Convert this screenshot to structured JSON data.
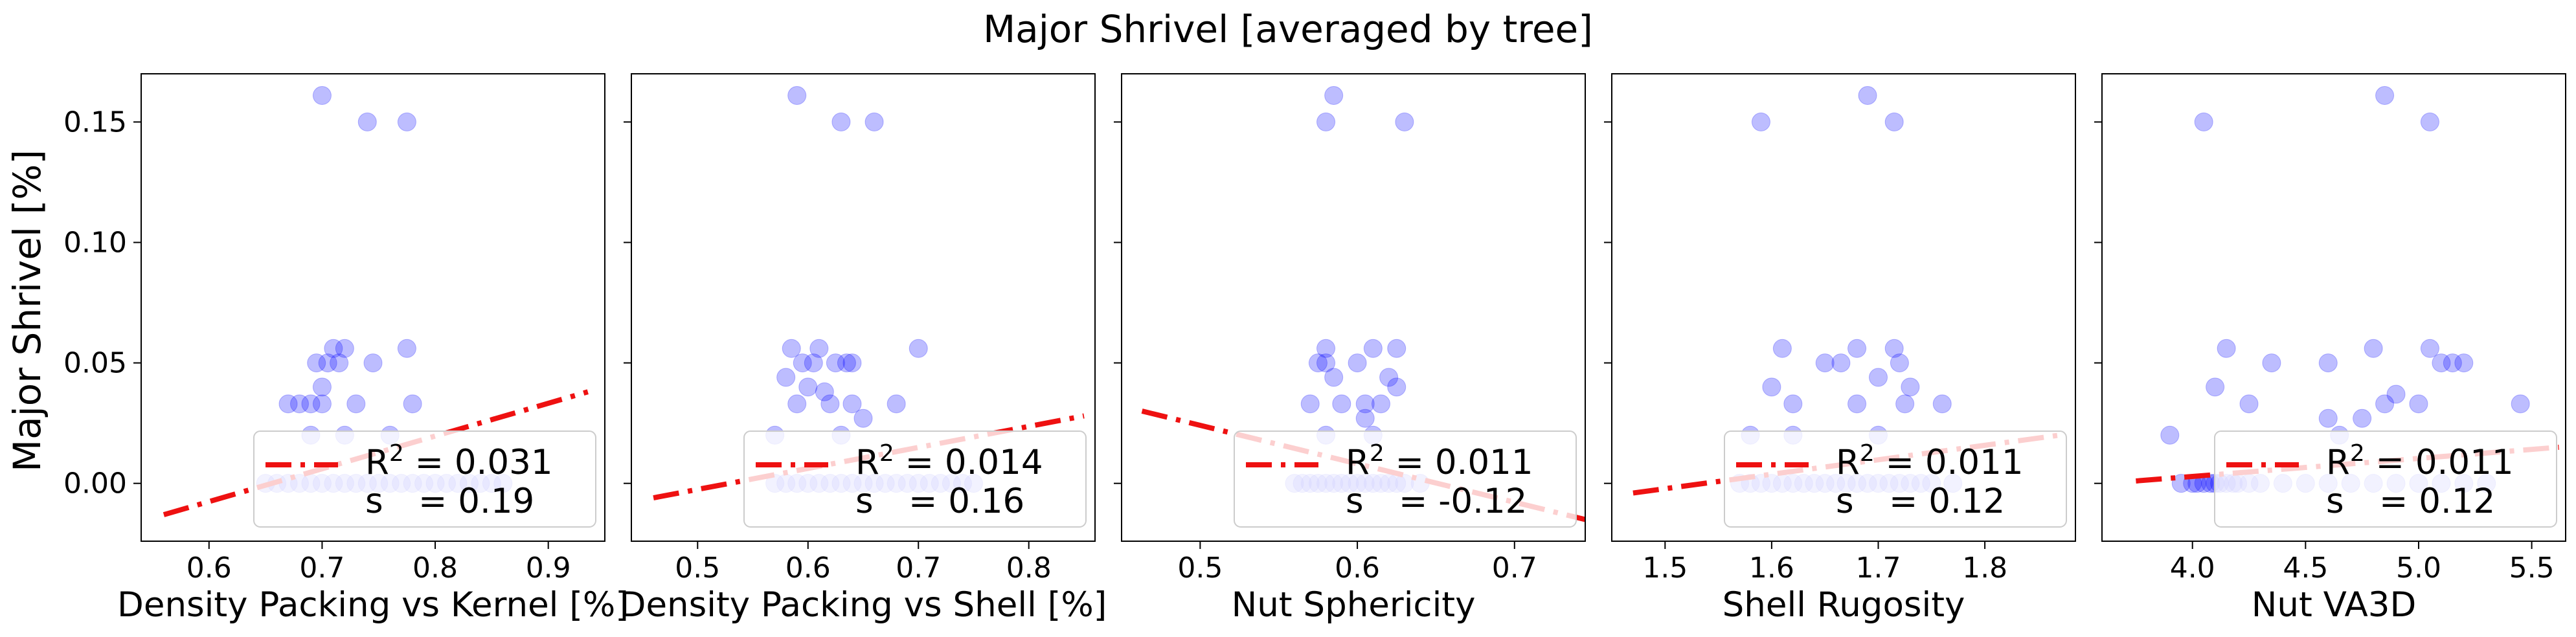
{
  "figure": {
    "title": "Major Shrivel [averaged by tree]",
    "ylabel": "Major Shrivel [%]"
  },
  "colors": {
    "points": "#0000ff",
    "fit_line": "#ee1111",
    "legend_line": "#ff9999"
  },
  "chart_data": [
    {
      "type": "scatter",
      "xlabel": "Density Packing vs Kernel [%]",
      "ylabel": "Major Shrivel [%]",
      "xlim": [
        0.54,
        0.95
      ],
      "ylim": [
        -0.024,
        0.17
      ],
      "xticks": [
        0.6,
        0.7,
        0.8,
        0.9
      ],
      "xtick_labels": [
        "0.6",
        "0.7",
        "0.8",
        "0.9"
      ],
      "yticks": [
        0.0,
        0.05,
        0.1,
        0.15
      ],
      "ytick_labels": [
        "0.00",
        "0.05",
        "0.10",
        "0.15"
      ],
      "points": [
        [
          0.7,
          0.161
        ],
        [
          0.74,
          0.15
        ],
        [
          0.775,
          0.15
        ],
        [
          0.71,
          0.056
        ],
        [
          0.72,
          0.056
        ],
        [
          0.775,
          0.056
        ],
        [
          0.695,
          0.05
        ],
        [
          0.705,
          0.05
        ],
        [
          0.715,
          0.05
        ],
        [
          0.745,
          0.05
        ],
        [
          0.7,
          0.04
        ],
        [
          0.69,
          0.033
        ],
        [
          0.7,
          0.033
        ],
        [
          0.67,
          0.033
        ],
        [
          0.68,
          0.033
        ],
        [
          0.73,
          0.033
        ],
        [
          0.78,
          0.033
        ],
        [
          0.72,
          0.02
        ],
        [
          0.76,
          0.02
        ],
        [
          0.69,
          0.02
        ],
        [
          0.66,
          0.0
        ],
        [
          0.68,
          0.0
        ],
        [
          0.7,
          0.0
        ],
        [
          0.72,
          0.0
        ],
        [
          0.74,
          0.0
        ],
        [
          0.76,
          0.0
        ],
        [
          0.78,
          0.0
        ],
        [
          0.8,
          0.0
        ],
        [
          0.82,
          0.0
        ],
        [
          0.84,
          0.0
        ],
        [
          0.86,
          0.0
        ],
        [
          0.65,
          0.0
        ],
        [
          0.67,
          0.0
        ],
        [
          0.69,
          0.0
        ],
        [
          0.71,
          0.0
        ],
        [
          0.73,
          0.0
        ],
        [
          0.75,
          0.0
        ],
        [
          0.77,
          0.0
        ],
        [
          0.79,
          0.0
        ],
        [
          0.81,
          0.0
        ],
        [
          0.83,
          0.0
        ],
        [
          0.85,
          0.0
        ]
      ],
      "fit": [
        [
          0.56,
          -0.013
        ],
        [
          0.935,
          0.038
        ]
      ],
      "r2_label": "R",
      "r2_sup": "2",
      "r2_value": "= 0.031",
      "s_label": "s",
      "s_value": "= 0.19",
      "legend": "lower right"
    },
    {
      "type": "scatter",
      "xlabel": "Density Packing vs Shell [%]",
      "ylabel": "",
      "xlim": [
        0.44,
        0.86
      ],
      "ylim": [
        -0.024,
        0.17
      ],
      "xticks": [
        0.5,
        0.6,
        0.7,
        0.8
      ],
      "xtick_labels": [
        "0.5",
        "0.6",
        "0.7",
        "0.8"
      ],
      "yticks": [
        0.0,
        0.05,
        0.1,
        0.15
      ],
      "ytick_labels": [
        "",
        "",
        "",
        ""
      ],
      "points": [
        [
          0.59,
          0.161
        ],
        [
          0.63,
          0.15
        ],
        [
          0.66,
          0.15
        ],
        [
          0.585,
          0.056
        ],
        [
          0.61,
          0.056
        ],
        [
          0.64,
          0.05
        ],
        [
          0.7,
          0.056
        ],
        [
          0.595,
          0.05
        ],
        [
          0.605,
          0.05
        ],
        [
          0.625,
          0.05
        ],
        [
          0.635,
          0.05
        ],
        [
          0.58,
          0.044
        ],
        [
          0.6,
          0.04
        ],
        [
          0.615,
          0.038
        ],
        [
          0.59,
          0.033
        ],
        [
          0.62,
          0.033
        ],
        [
          0.64,
          0.033
        ],
        [
          0.68,
          0.033
        ],
        [
          0.57,
          0.02
        ],
        [
          0.63,
          0.02
        ],
        [
          0.65,
          0.027
        ],
        [
          0.57,
          0.0
        ],
        [
          0.59,
          0.0
        ],
        [
          0.61,
          0.0
        ],
        [
          0.63,
          0.0
        ],
        [
          0.65,
          0.0
        ],
        [
          0.67,
          0.0
        ],
        [
          0.69,
          0.0
        ],
        [
          0.71,
          0.0
        ],
        [
          0.73,
          0.0
        ],
        [
          0.75,
          0.0
        ],
        [
          0.58,
          0.0
        ],
        [
          0.6,
          0.0
        ],
        [
          0.62,
          0.0
        ],
        [
          0.64,
          0.0
        ],
        [
          0.66,
          0.0
        ],
        [
          0.68,
          0.0
        ],
        [
          0.7,
          0.0
        ],
        [
          0.72,
          0.0
        ],
        [
          0.74,
          0.0
        ]
      ],
      "fit": [
        [
          0.46,
          -0.006
        ],
        [
          0.85,
          0.028
        ]
      ],
      "r2_label": "R",
      "r2_sup": "2",
      "r2_value": "= 0.014",
      "s_label": "s",
      "s_value": "= 0.16",
      "legend": "lower right"
    },
    {
      "type": "scatter",
      "xlabel": "Nut Sphericity",
      "ylabel": "",
      "xlim": [
        0.45,
        0.745
      ],
      "ylim": [
        -0.024,
        0.17
      ],
      "xticks": [
        0.5,
        0.6,
        0.7
      ],
      "xtick_labels": [
        "0.5",
        "0.6",
        "0.7"
      ],
      "yticks": [
        0.0,
        0.05,
        0.1,
        0.15
      ],
      "ytick_labels": [
        "",
        "",
        "",
        ""
      ],
      "points": [
        [
          0.585,
          0.161
        ],
        [
          0.58,
          0.15
        ],
        [
          0.63,
          0.15
        ],
        [
          0.58,
          0.056
        ],
        [
          0.61,
          0.056
        ],
        [
          0.625,
          0.056
        ],
        [
          0.575,
          0.05
        ],
        [
          0.58,
          0.05
        ],
        [
          0.6,
          0.05
        ],
        [
          0.585,
          0.044
        ],
        [
          0.62,
          0.044
        ],
        [
          0.57,
          0.033
        ],
        [
          0.59,
          0.033
        ],
        [
          0.605,
          0.033
        ],
        [
          0.615,
          0.033
        ],
        [
          0.625,
          0.04
        ],
        [
          0.58,
          0.02
        ],
        [
          0.61,
          0.02
        ],
        [
          0.605,
          0.027
        ],
        [
          0.56,
          0.0
        ],
        [
          0.57,
          0.0
        ],
        [
          0.58,
          0.0
        ],
        [
          0.59,
          0.0
        ],
        [
          0.6,
          0.0
        ],
        [
          0.61,
          0.0
        ],
        [
          0.62,
          0.0
        ],
        [
          0.63,
          0.0
        ],
        [
          0.64,
          0.0
        ],
        [
          0.565,
          0.0
        ],
        [
          0.575,
          0.0
        ],
        [
          0.585,
          0.0
        ],
        [
          0.595,
          0.0
        ],
        [
          0.605,
          0.0
        ],
        [
          0.615,
          0.0
        ],
        [
          0.625,
          0.0
        ]
      ],
      "fit": [
        [
          0.463,
          0.03
        ],
        [
          0.745,
          -0.015
        ]
      ],
      "r2_label": "R",
      "r2_sup": "2",
      "r2_value": "= 0.011",
      "s_label": "s",
      "s_value": "= -0.12",
      "legend": "lower right"
    },
    {
      "type": "scatter",
      "xlabel": "Shell Rugosity",
      "ylabel": "",
      "xlim": [
        1.45,
        1.885
      ],
      "ylim": [
        -0.024,
        0.17
      ],
      "xticks": [
        1.5,
        1.6,
        1.7,
        1.8
      ],
      "xtick_labels": [
        "1.5",
        "1.6",
        "1.7",
        "1.8"
      ],
      "yticks": [
        0.0,
        0.05,
        0.1,
        0.15
      ],
      "ytick_labels": [
        "",
        "",
        "",
        ""
      ],
      "points": [
        [
          1.69,
          0.161
        ],
        [
          1.59,
          0.15
        ],
        [
          1.715,
          0.15
        ],
        [
          1.61,
          0.056
        ],
        [
          1.68,
          0.056
        ],
        [
          1.715,
          0.056
        ],
        [
          1.65,
          0.05
        ],
        [
          1.665,
          0.05
        ],
        [
          1.72,
          0.05
        ],
        [
          1.6,
          0.04
        ],
        [
          1.62,
          0.033
        ],
        [
          1.7,
          0.044
        ],
        [
          1.73,
          0.04
        ],
        [
          1.68,
          0.033
        ],
        [
          1.725,
          0.033
        ],
        [
          1.76,
          0.033
        ],
        [
          1.62,
          0.02
        ],
        [
          1.7,
          0.02
        ],
        [
          1.58,
          0.02
        ],
        [
          1.57,
          0.0
        ],
        [
          1.59,
          0.0
        ],
        [
          1.61,
          0.0
        ],
        [
          1.63,
          0.0
        ],
        [
          1.65,
          0.0
        ],
        [
          1.67,
          0.0
        ],
        [
          1.69,
          0.0
        ],
        [
          1.71,
          0.0
        ],
        [
          1.73,
          0.0
        ],
        [
          1.75,
          0.0
        ],
        [
          1.77,
          0.0
        ],
        [
          1.58,
          0.0
        ],
        [
          1.6,
          0.0
        ],
        [
          1.62,
          0.0
        ],
        [
          1.64,
          0.0
        ],
        [
          1.66,
          0.0
        ],
        [
          1.68,
          0.0
        ],
        [
          1.7,
          0.0
        ],
        [
          1.72,
          0.0
        ],
        [
          1.74,
          0.0
        ]
      ],
      "fit": [
        [
          1.47,
          -0.004
        ],
        [
          1.87,
          0.02
        ]
      ],
      "r2_label": "R",
      "r2_sup": "2",
      "r2_value": "= 0.011",
      "s_label": "s",
      "s_value": "= 0.12",
      "legend": "lower right"
    },
    {
      "type": "scatter",
      "xlabel": "Nut VA3D",
      "ylabel": "",
      "xlim": [
        3.6,
        5.65
      ],
      "ylim": [
        -0.024,
        0.17
      ],
      "xticks": [
        4.0,
        4.5,
        5.0,
        5.5
      ],
      "xtick_labels": [
        "4.0",
        "4.5",
        "5.0",
        "5.5"
      ],
      "yticks": [
        0.0,
        0.05,
        0.1,
        0.15
      ],
      "ytick_labels": [
        "",
        "",
        "",
        ""
      ],
      "points": [
        [
          4.85,
          0.161
        ],
        [
          4.05,
          0.15
        ],
        [
          5.05,
          0.15
        ],
        [
          4.15,
          0.056
        ],
        [
          4.8,
          0.056
        ],
        [
          5.05,
          0.056
        ],
        [
          4.35,
          0.05
        ],
        [
          4.6,
          0.05
        ],
        [
          5.1,
          0.05
        ],
        [
          5.15,
          0.05
        ],
        [
          5.2,
          0.05
        ],
        [
          4.1,
          0.04
        ],
        [
          4.9,
          0.037
        ],
        [
          4.25,
          0.033
        ],
        [
          4.6,
          0.027
        ],
        [
          4.75,
          0.027
        ],
        [
          5.0,
          0.033
        ],
        [
          5.45,
          0.033
        ],
        [
          3.9,
          0.02
        ],
        [
          4.65,
          0.02
        ],
        [
          4.85,
          0.033
        ],
        [
          3.95,
          0.0
        ],
        [
          4.0,
          0.0
        ],
        [
          4.05,
          0.0
        ],
        [
          4.1,
          0.0
        ],
        [
          4.15,
          0.0
        ],
        [
          4.2,
          0.0
        ],
        [
          4.3,
          0.0
        ],
        [
          4.4,
          0.0
        ],
        [
          4.5,
          0.0
        ],
        [
          4.6,
          0.0
        ],
        [
          4.7,
          0.0
        ],
        [
          4.8,
          0.0
        ],
        [
          4.9,
          0.0
        ],
        [
          5.0,
          0.0
        ],
        [
          5.1,
          0.0
        ],
        [
          5.2,
          0.0
        ],
        [
          5.3,
          0.0
        ],
        [
          4.02,
          0.0
        ],
        [
          4.08,
          0.0
        ],
        [
          4.12,
          0.0
        ],
        [
          4.18,
          0.0
        ],
        [
          4.25,
          0.0
        ]
      ],
      "fit": [
        [
          3.75,
          0.001
        ],
        [
          5.62,
          0.015
        ]
      ],
      "r2_label": "R",
      "r2_sup": "2",
      "r2_value": "= 0.011",
      "s_label": "s",
      "s_value": "= 0.12",
      "legend": "lower right"
    }
  ]
}
